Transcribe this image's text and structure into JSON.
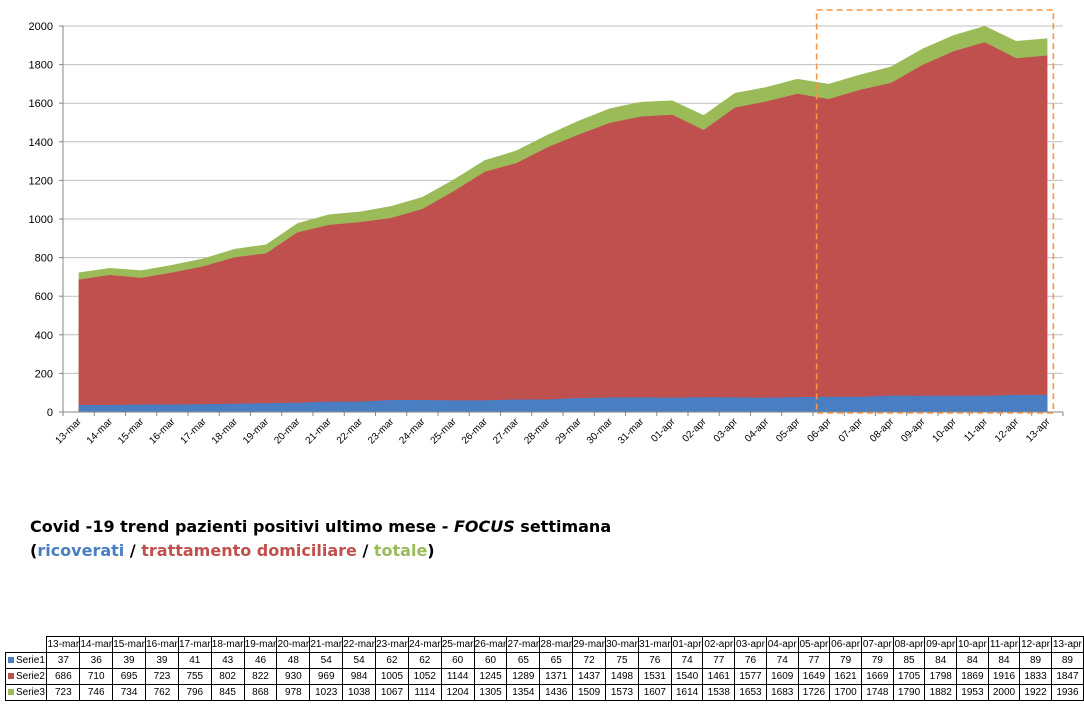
{
  "chart_data": {
    "type": "area",
    "stacked": false,
    "categories": [
      "13-mar",
      "14-mar",
      "15-mar",
      "16-mar",
      "17-mar",
      "18-mar",
      "19-mar",
      "20-mar",
      "21-mar",
      "22-mar",
      "23-mar",
      "24-mar",
      "25-mar",
      "26-mar",
      "27-mar",
      "28-mar",
      "29-mar",
      "30-mar",
      "31-mar",
      "01-apr",
      "02-apr",
      "03-apr",
      "04-apr",
      "05-apr",
      "06-apr",
      "07-apr",
      "08-apr",
      "09-apr",
      "10-apr",
      "11-apr",
      "12-apr",
      "13-apr"
    ],
    "series": [
      {
        "name": "Serie1",
        "color": "#4a7ec2",
        "values": [
          37,
          36,
          39,
          39,
          41,
          43,
          46,
          48,
          54,
          54,
          62,
          62,
          60,
          60,
          65,
          65,
          72,
          75,
          76,
          74,
          77,
          76,
          74,
          77,
          79,
          79,
          85,
          84,
          84,
          84,
          89,
          89
        ]
      },
      {
        "name": "Serie2",
        "color": "#c0504d",
        "values": [
          686,
          710,
          695,
          723,
          755,
          802,
          822,
          930,
          969,
          984,
          1005,
          1052,
          1144,
          1245,
          1289,
          1371,
          1437,
          1498,
          1531,
          1540,
          1461,
          1577,
          1609,
          1649,
          1621,
          1669,
          1705,
          1798,
          1869,
          1916,
          1833,
          1847
        ]
      },
      {
        "name": "Serie3",
        "color": "#9bbb59",
        "values": [
          723,
          746,
          734,
          762,
          796,
          845,
          868,
          978,
          1023,
          1038,
          1067,
          1114,
          1204,
          1305,
          1354,
          1436,
          1509,
          1573,
          1607,
          1614,
          1538,
          1653,
          1683,
          1726,
          1700,
          1748,
          1790,
          1882,
          1953,
          2000,
          1922,
          1936
        ]
      }
    ],
    "ylim": [
      0,
      2000
    ],
    "yticks": [
      0,
      200,
      400,
      600,
      800,
      1000,
      1200,
      1400,
      1600,
      1800,
      2000
    ],
    "grid": true,
    "highlight": {
      "from": "06-apr",
      "to": "13-apr",
      "color": "#f79646",
      "style": "dashed"
    }
  },
  "caption": {
    "line1_prefix": "Covid -19 trend pazienti positivi ultimo mese - ",
    "line1_focus": "FOCUS",
    "line1_suffix": " settimana",
    "open_paren": "(",
    "ricoverati": "ricoverati",
    "sep1": " / ",
    "trattamento": "trattamento domiciliare",
    "sep2": " / ",
    "totale": "totale",
    "close_paren": ")"
  }
}
